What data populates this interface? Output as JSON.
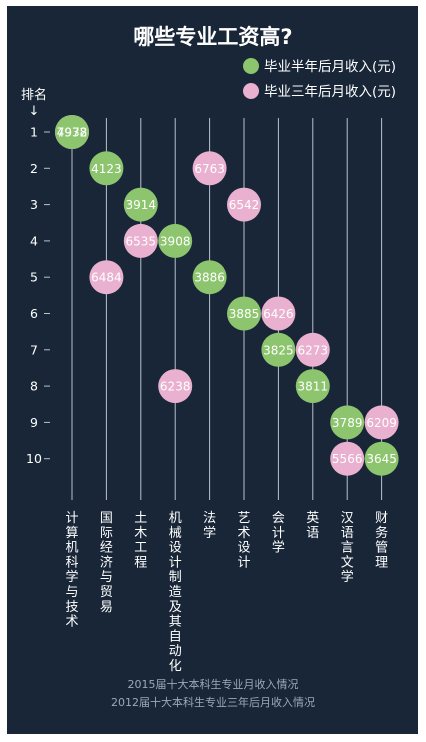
{
  "colors": {
    "background": "#182637",
    "series_green": "#8cc56e",
    "series_pink": "#eab0cf",
    "lines": "#b9c2cd"
  },
  "chart_data": {
    "type": "scatter",
    "title": "哪些专业工资高?",
    "rank_label": "排名",
    "rank_arrow": "↓",
    "ranks": [
      "1",
      "2",
      "3",
      "4",
      "5",
      "6",
      "7",
      "8",
      "9",
      "10"
    ],
    "categories": [
      "计算机科学与技术",
      "国际经济与贸易",
      "土木工程",
      "机械设计制造及其自动化",
      "法学",
      "艺术设计",
      "会计学",
      "英语",
      "汉语言文学",
      "财务管理"
    ],
    "series": [
      {
        "name": "毕业半年后月收入(元)",
        "color": "#8cc56e",
        "points": [
          {
            "category": "计算机科学与技术",
            "rank": 1,
            "value": 4978
          },
          {
            "category": "国际经济与贸易",
            "rank": 2,
            "value": 4123
          },
          {
            "category": "土木工程",
            "rank": 3,
            "value": 3914
          },
          {
            "category": "机械设计制造及其自动化",
            "rank": 4,
            "value": 3908
          },
          {
            "category": "法学",
            "rank": 5,
            "value": 3886
          },
          {
            "category": "艺术设计",
            "rank": 6,
            "value": 3885
          },
          {
            "category": "会计学",
            "rank": 7,
            "value": 3825
          },
          {
            "category": "英语",
            "rank": 8,
            "value": 3811
          },
          {
            "category": "汉语言文学",
            "rank": 9,
            "value": 3789
          },
          {
            "category": "财务管理",
            "rank": 10,
            "value": 3645
          }
        ]
      },
      {
        "name": "毕业三年后月收入(元)",
        "color": "#eab0cf",
        "points": [
          {
            "category": "计算机科学与技术",
            "rank": 1,
            "value": 7932
          },
          {
            "category": "法学",
            "rank": 2,
            "value": 6763
          },
          {
            "category": "艺术设计",
            "rank": 3,
            "value": 6542
          },
          {
            "category": "土木工程",
            "rank": 4,
            "value": 6535
          },
          {
            "category": "国际经济与贸易",
            "rank": 5,
            "value": 6484
          },
          {
            "category": "会计学",
            "rank": 6,
            "value": 6426
          },
          {
            "category": "英语",
            "rank": 7,
            "value": 6273
          },
          {
            "category": "机械设计制造及其自动化",
            "rank": 8,
            "value": 6238
          },
          {
            "category": "财务管理",
            "rank": 9,
            "value": 6209
          },
          {
            "category": "汉语言文学",
            "rank": 10,
            "value": 5566
          }
        ]
      }
    ],
    "footnotes": [
      "2015届十大本科生专业月收入情况",
      "2012届十大本科生专业三年后月收入情况"
    ]
  }
}
